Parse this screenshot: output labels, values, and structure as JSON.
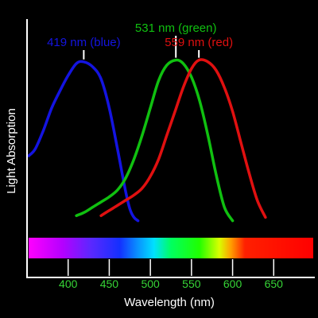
{
  "chart_data": {
    "type": "line",
    "xlabel": "Wavelength (nm)",
    "ylabel": "Light Absorption",
    "xlim": [
      350,
      700
    ],
    "ticks": [
      400,
      450,
      500,
      550,
      600,
      650
    ],
    "series": [
      {
        "name": "419 nm (blue)",
        "color": "#1414e0",
        "peak": 419,
        "x": [
          352,
          360,
          370,
          380,
          390,
          400,
          410,
          419,
          430,
          440,
          450,
          460,
          470,
          475,
          480,
          485
        ],
        "y": [
          0.4,
          0.44,
          0.55,
          0.68,
          0.78,
          0.87,
          0.94,
          0.95,
          0.92,
          0.85,
          0.68,
          0.44,
          0.19,
          0.09,
          0.04,
          0.02
        ]
      },
      {
        "name": "531 nm (green)",
        "color": "#10c010",
        "peak": 531,
        "x": [
          410,
          420,
          430,
          440,
          450,
          460,
          470,
          480,
          490,
          500,
          510,
          520,
          531,
          540,
          550,
          560,
          570,
          580,
          590,
          600
        ],
        "y": [
          0.05,
          0.07,
          0.1,
          0.13,
          0.16,
          0.2,
          0.27,
          0.38,
          0.52,
          0.68,
          0.84,
          0.93,
          0.96,
          0.94,
          0.86,
          0.72,
          0.52,
          0.29,
          0.1,
          0.02
        ]
      },
      {
        "name": "559 nm (red)",
        "color": "#e01010",
        "peak": 559,
        "x": [
          440,
          450,
          460,
          470,
          480,
          490,
          500,
          510,
          520,
          530,
          540,
          550,
          559,
          570,
          580,
          590,
          600,
          610,
          620,
          630,
          640
        ],
        "y": [
          0.05,
          0.08,
          0.11,
          0.14,
          0.17,
          0.21,
          0.28,
          0.38,
          0.52,
          0.66,
          0.8,
          0.91,
          0.96,
          0.95,
          0.9,
          0.8,
          0.66,
          0.48,
          0.3,
          0.14,
          0.04
        ]
      }
    ]
  }
}
